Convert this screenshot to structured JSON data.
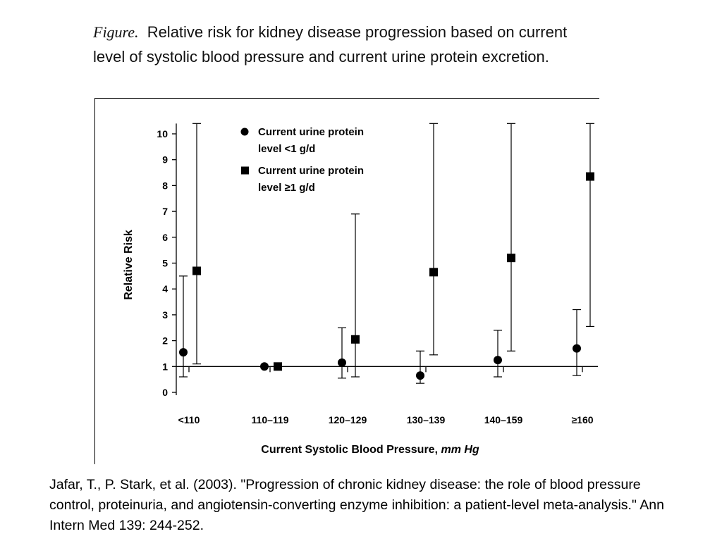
{
  "caption": {
    "figure_word": "Figure.",
    "text": "Relative risk for kidney disease progression based on current level of systolic blood pressure and current urine protein excretion."
  },
  "citation": "Jafar, T., P. Stark, et al. (2003). \"Progression of chronic kidney disease: the role of blood pressure control, proteinuria, and angiotensin-converting enzyme inhibition: a patient-level meta-analysis.\" Ann Intern Med 139: 244-252.",
  "chart_data": {
    "type": "scatter",
    "xlabel_main": "Current Systolic Blood Pressure, ",
    "xlabel_unit": "mm Hg",
    "ylabel": "Relative Risk",
    "categories": [
      "<110",
      "110–119",
      "120–129",
      "130–139",
      "140–159",
      "≥160"
    ],
    "ylim": [
      0,
      10
    ],
    "yticks": [
      "0",
      "1",
      "2",
      "3",
      "4",
      "5",
      "6",
      "7",
      "8",
      "9",
      "10"
    ],
    "reference_line": 1,
    "legend": {
      "position": "top-left",
      "entries": [
        {
          "marker": "circle",
          "line1": "Current urine protein",
          "line2": "level <1 g/d"
        },
        {
          "marker": "square",
          "line1": "Current urine protein",
          "line2": "level ≥1 g/d"
        }
      ]
    },
    "series": [
      {
        "marker": "circle",
        "values": [
          1.55,
          1.0,
          1.15,
          0.65,
          1.25,
          1.7
        ],
        "lower": [
          0.6,
          null,
          0.55,
          0.35,
          0.6,
          0.65
        ],
        "upper": [
          4.5,
          null,
          2.5,
          1.6,
          2.4,
          3.2
        ]
      },
      {
        "marker": "square",
        "values": [
          4.7,
          1.0,
          2.05,
          4.65,
          5.2,
          8.35
        ],
        "lower": [
          1.1,
          null,
          0.6,
          1.45,
          1.6,
          2.55
        ],
        "upper": [
          10.4,
          null,
          6.9,
          10.4,
          10.4,
          10.4
        ]
      }
    ]
  }
}
